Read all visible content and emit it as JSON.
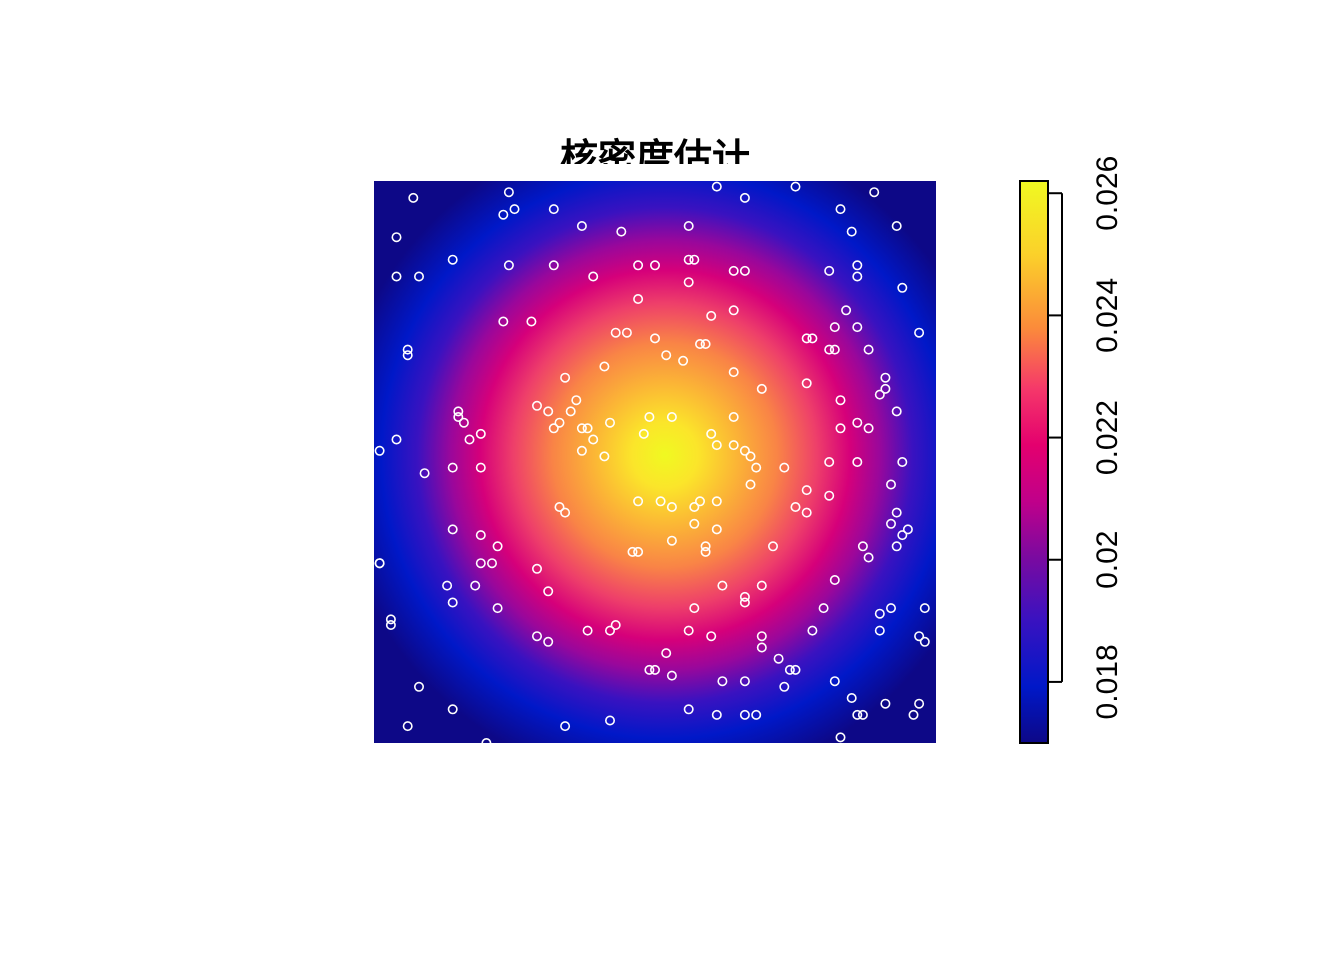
{
  "chart_data": {
    "type": "heatmap",
    "title": "核密度估计",
    "xlabel": "",
    "ylabel": "",
    "colorbar": {
      "range": [
        0.017,
        0.0262
      ],
      "ticks": [
        0.018,
        0.02,
        0.022,
        0.024,
        0.026
      ],
      "tick_labels": [
        "0.018",
        "0.02",
        "0.022",
        "0.024",
        "0.026"
      ],
      "palette": [
        "#0d0887",
        "#0018c8",
        "#7a0aa0",
        "#d6007a",
        "#f5386a",
        "#fb8c3a",
        "#fbd12a",
        "#f0f921"
      ]
    },
    "density": {
      "peak_value": 0.0262,
      "edge_value": 0.017,
      "peak_center": [
        0.52,
        0.49
      ]
    },
    "points_color": "#ffffff",
    "points": [
      [
        0.07,
        0.97
      ],
      [
        0.24,
        0.98
      ],
      [
        0.61,
        0.99
      ],
      [
        0.75,
        0.99
      ],
      [
        0.89,
        0.98
      ],
      [
        0.66,
        0.97
      ],
      [
        0.23,
        0.94
      ],
      [
        0.25,
        0.95
      ],
      [
        0.32,
        0.95
      ],
      [
        0.83,
        0.95
      ],
      [
        0.37,
        0.92
      ],
      [
        0.44,
        0.91
      ],
      [
        0.56,
        0.92
      ],
      [
        0.85,
        0.91
      ],
      [
        0.93,
        0.92
      ],
      [
        0.04,
        0.9
      ],
      [
        0.14,
        0.86
      ],
      [
        0.24,
        0.85
      ],
      [
        0.32,
        0.85
      ],
      [
        0.47,
        0.85
      ],
      [
        0.5,
        0.85
      ],
      [
        0.56,
        0.86
      ],
      [
        0.57,
        0.86
      ],
      [
        0.64,
        0.84
      ],
      [
        0.66,
        0.84
      ],
      [
        0.81,
        0.84
      ],
      [
        0.86,
        0.85
      ],
      [
        0.04,
        0.83
      ],
      [
        0.08,
        0.83
      ],
      [
        0.39,
        0.83
      ],
      [
        0.56,
        0.82
      ],
      [
        0.86,
        0.83
      ],
      [
        0.47,
        0.79
      ],
      [
        0.94,
        0.81
      ],
      [
        0.6,
        0.76
      ],
      [
        0.64,
        0.77
      ],
      [
        0.84,
        0.77
      ],
      [
        0.23,
        0.75
      ],
      [
        0.28,
        0.75
      ],
      [
        0.82,
        0.74
      ],
      [
        0.86,
        0.74
      ],
      [
        0.43,
        0.73
      ],
      [
        0.45,
        0.73
      ],
      [
        0.5,
        0.72
      ],
      [
        0.77,
        0.72
      ],
      [
        0.78,
        0.72
      ],
      [
        0.58,
        0.71
      ],
      [
        0.59,
        0.71
      ],
      [
        0.81,
        0.7
      ],
      [
        0.82,
        0.7
      ],
      [
        0.97,
        0.73
      ],
      [
        0.06,
        0.69
      ],
      [
        0.06,
        0.7
      ],
      [
        0.88,
        0.7
      ],
      [
        0.52,
        0.69
      ],
      [
        0.55,
        0.68
      ],
      [
        0.41,
        0.67
      ],
      [
        0.64,
        0.66
      ],
      [
        0.34,
        0.65
      ],
      [
        0.91,
        0.65
      ],
      [
        0.91,
        0.63
      ],
      [
        0.9,
        0.62
      ],
      [
        0.69,
        0.63
      ],
      [
        0.77,
        0.64
      ],
      [
        0.36,
        0.61
      ],
      [
        0.83,
        0.61
      ],
      [
        0.29,
        0.6
      ],
      [
        0.31,
        0.59
      ],
      [
        0.35,
        0.59
      ],
      [
        0.49,
        0.58
      ],
      [
        0.15,
        0.59
      ],
      [
        0.15,
        0.58
      ],
      [
        0.16,
        0.57
      ],
      [
        0.33,
        0.57
      ],
      [
        0.32,
        0.56
      ],
      [
        0.37,
        0.56
      ],
      [
        0.38,
        0.56
      ],
      [
        0.42,
        0.57
      ],
      [
        0.53,
        0.58
      ],
      [
        0.64,
        0.58
      ],
      [
        0.86,
        0.57
      ],
      [
        0.88,
        0.56
      ],
      [
        0.39,
        0.54
      ],
      [
        0.48,
        0.55
      ],
      [
        0.6,
        0.55
      ],
      [
        0.64,
        0.53
      ],
      [
        0.83,
        0.56
      ],
      [
        0.93,
        0.59
      ],
      [
        0.01,
        0.52
      ],
      [
        0.04,
        0.54
      ],
      [
        0.17,
        0.54
      ],
      [
        0.19,
        0.55
      ],
      [
        0.37,
        0.52
      ],
      [
        0.41,
        0.51
      ],
      [
        0.61,
        0.53
      ],
      [
        0.66,
        0.52
      ],
      [
        0.67,
        0.51
      ],
      [
        0.68,
        0.49
      ],
      [
        0.73,
        0.49
      ],
      [
        0.81,
        0.5
      ],
      [
        0.86,
        0.5
      ],
      [
        0.94,
        0.5
      ],
      [
        0.09,
        0.48
      ],
      [
        0.14,
        0.49
      ],
      [
        0.19,
        0.49
      ],
      [
        0.67,
        0.46
      ],
      [
        0.77,
        0.45
      ],
      [
        0.81,
        0.44
      ],
      [
        0.92,
        0.46
      ],
      [
        0.47,
        0.43
      ],
      [
        0.51,
        0.43
      ],
      [
        0.53,
        0.42
      ],
      [
        0.57,
        0.42
      ],
      [
        0.58,
        0.43
      ],
      [
        0.61,
        0.43
      ],
      [
        0.33,
        0.42
      ],
      [
        0.34,
        0.41
      ],
      [
        0.75,
        0.42
      ],
      [
        0.77,
        0.41
      ],
      [
        0.93,
        0.41
      ],
      [
        0.92,
        0.39
      ],
      [
        0.95,
        0.38
      ],
      [
        0.57,
        0.39
      ],
      [
        0.61,
        0.38
      ],
      [
        0.14,
        0.38
      ],
      [
        0.94,
        0.37
      ],
      [
        0.93,
        0.35
      ],
      [
        0.22,
        0.35
      ],
      [
        0.53,
        0.36
      ],
      [
        0.46,
        0.34
      ],
      [
        0.47,
        0.34
      ],
      [
        0.59,
        0.35
      ],
      [
        0.59,
        0.34
      ],
      [
        0.71,
        0.35
      ],
      [
        0.87,
        0.35
      ],
      [
        0.88,
        0.33
      ],
      [
        0.19,
        0.32
      ],
      [
        0.21,
        0.32
      ],
      [
        0.29,
        0.31
      ],
      [
        0.01,
        0.32
      ],
      [
        0.62,
        0.28
      ],
      [
        0.66,
        0.26
      ],
      [
        0.69,
        0.28
      ],
      [
        0.82,
        0.29
      ],
      [
        0.13,
        0.28
      ],
      [
        0.18,
        0.28
      ],
      [
        0.31,
        0.27
      ],
      [
        0.14,
        0.25
      ],
      [
        0.22,
        0.24
      ],
      [
        0.57,
        0.24
      ],
      [
        0.66,
        0.25
      ],
      [
        0.8,
        0.24
      ],
      [
        0.9,
        0.23
      ],
      [
        0.92,
        0.24
      ],
      [
        0.98,
        0.24
      ],
      [
        0.03,
        0.22
      ],
      [
        0.03,
        0.21
      ],
      [
        0.29,
        0.19
      ],
      [
        0.31,
        0.18
      ],
      [
        0.38,
        0.2
      ],
      [
        0.42,
        0.2
      ],
      [
        0.43,
        0.21
      ],
      [
        0.56,
        0.2
      ],
      [
        0.6,
        0.19
      ],
      [
        0.69,
        0.19
      ],
      [
        0.78,
        0.2
      ],
      [
        0.9,
        0.2
      ],
      [
        0.97,
        0.19
      ],
      [
        0.98,
        0.18
      ],
      [
        0.52,
        0.16
      ],
      [
        0.69,
        0.17
      ],
      [
        0.72,
        0.15
      ],
      [
        0.49,
        0.13
      ],
      [
        0.5,
        0.13
      ],
      [
        0.53,
        0.12
      ],
      [
        0.74,
        0.13
      ],
      [
        0.75,
        0.13
      ],
      [
        0.08,
        0.1
      ],
      [
        0.62,
        0.11
      ],
      [
        0.66,
        0.11
      ],
      [
        0.73,
        0.1
      ],
      [
        0.82,
        0.11
      ],
      [
        0.85,
        0.08
      ],
      [
        0.14,
        0.06
      ],
      [
        0.56,
        0.06
      ],
      [
        0.66,
        0.05
      ],
      [
        0.87,
        0.05
      ],
      [
        0.91,
        0.07
      ],
      [
        0.97,
        0.07
      ],
      [
        0.96,
        0.05
      ],
      [
        0.06,
        0.03
      ],
      [
        0.34,
        0.03
      ],
      [
        0.42,
        0.04
      ],
      [
        0.61,
        0.05
      ],
      [
        0.68,
        0.05
      ],
      [
        0.86,
        0.05
      ],
      [
        0.2,
        0.0
      ],
      [
        0.83,
        0.01
      ],
      [
        0.01,
        0.32
      ],
      [
        0.19,
        0.37
      ]
    ]
  }
}
